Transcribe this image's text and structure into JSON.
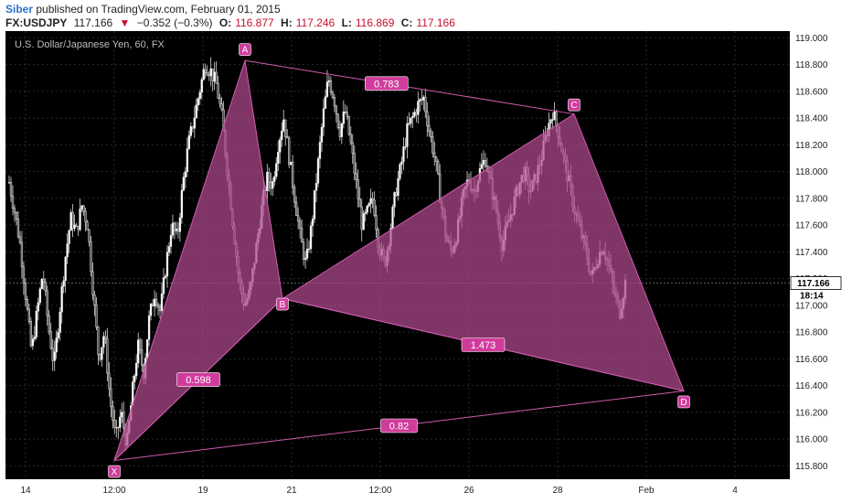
{
  "header": {
    "author": "Siber",
    "published_text": "published on TradingView.com, February 01, 2015",
    "symbol": "FX:USDJPY",
    "last": "117.166",
    "change_arrow": "▼",
    "change": "−0.352 (−0.3%)",
    "open_label": "O:",
    "open": "116.877",
    "high_label": "H:",
    "high": "117.246",
    "low_label": "L:",
    "low": "116.869",
    "close_label": "C:",
    "close": "117.166"
  },
  "chart_data": {
    "type": "candlestick-harmonic",
    "title": "U.S. Dollar/Japanese Yen, 60, FX",
    "ylim": [
      115.7,
      119.05
    ],
    "y_ticks": [
      "115.800",
      "116.000",
      "116.200",
      "116.400",
      "116.600",
      "116.800",
      "117.000",
      "117.200",
      "117.400",
      "117.600",
      "117.800",
      "118.000",
      "118.200",
      "118.400",
      "118.600",
      "118.800",
      "119.000"
    ],
    "x_ticks": [
      "14",
      "12:00",
      "19",
      "21",
      "12:00",
      "26",
      "28",
      "Feb",
      "4"
    ],
    "last_price_label": "117.166",
    "countdown_label": "18:14",
    "pattern_points": [
      {
        "name": "X",
        "price": 115.84
      },
      {
        "name": "A",
        "price": 118.83
      },
      {
        "name": "B",
        "price": 117.05
      },
      {
        "name": "C",
        "price": 118.43
      },
      {
        "name": "D",
        "price": 116.36
      }
    ],
    "ratios": [
      {
        "label": "0.598",
        "from": "XA",
        "to": "B"
      },
      {
        "label": "0.783",
        "from": "A",
        "to": "C"
      },
      {
        "label": "1.473",
        "from": "BC",
        "to": "D"
      },
      {
        "label": "0.82",
        "from": "X",
        "to": "D"
      }
    ],
    "colors": {
      "background": "#000000",
      "candles": "#e8e8e8",
      "pattern_fill": "#b04a8c",
      "pattern_stroke": "#d05ab0",
      "label_bg": "#d03c9c",
      "price_box": "#ffffff"
    },
    "price_path": [
      117.92,
      117.7,
      117.45,
      117.05,
      116.65,
      116.95,
      117.25,
      116.85,
      116.55,
      116.95,
      117.35,
      117.65,
      117.55,
      117.75,
      117.6,
      117.1,
      116.6,
      116.8,
      116.3,
      116.0,
      116.2,
      115.95,
      116.35,
      116.7,
      116.5,
      116.9,
      117.1,
      116.95,
      117.3,
      117.6,
      117.5,
      117.9,
      118.2,
      118.4,
      118.6,
      118.8,
      118.75,
      118.65,
      118.4,
      118.0,
      117.6,
      117.2,
      117.0,
      117.1,
      117.4,
      117.7,
      117.95,
      117.9,
      118.2,
      118.4,
      118.1,
      117.8,
      117.5,
      117.3,
      117.6,
      118.0,
      118.4,
      118.7,
      118.55,
      118.3,
      118.45,
      118.2,
      117.9,
      117.6,
      117.7,
      117.8,
      117.45,
      117.3,
      117.55,
      117.85,
      118.05,
      118.3,
      118.4,
      118.5,
      118.55,
      118.3,
      118.1,
      117.8,
      117.5,
      117.4,
      117.55,
      117.8,
      117.95,
      117.85,
      118.0,
      118.1,
      117.9,
      117.7,
      117.45,
      117.6,
      117.75,
      117.9,
      118.0,
      117.85,
      117.95,
      118.1,
      118.3,
      118.45,
      118.3,
      118.1,
      117.9,
      117.7,
      117.55,
      117.4,
      117.2,
      117.35,
      117.45,
      117.3,
      117.1,
      116.95,
      117.17
    ]
  }
}
